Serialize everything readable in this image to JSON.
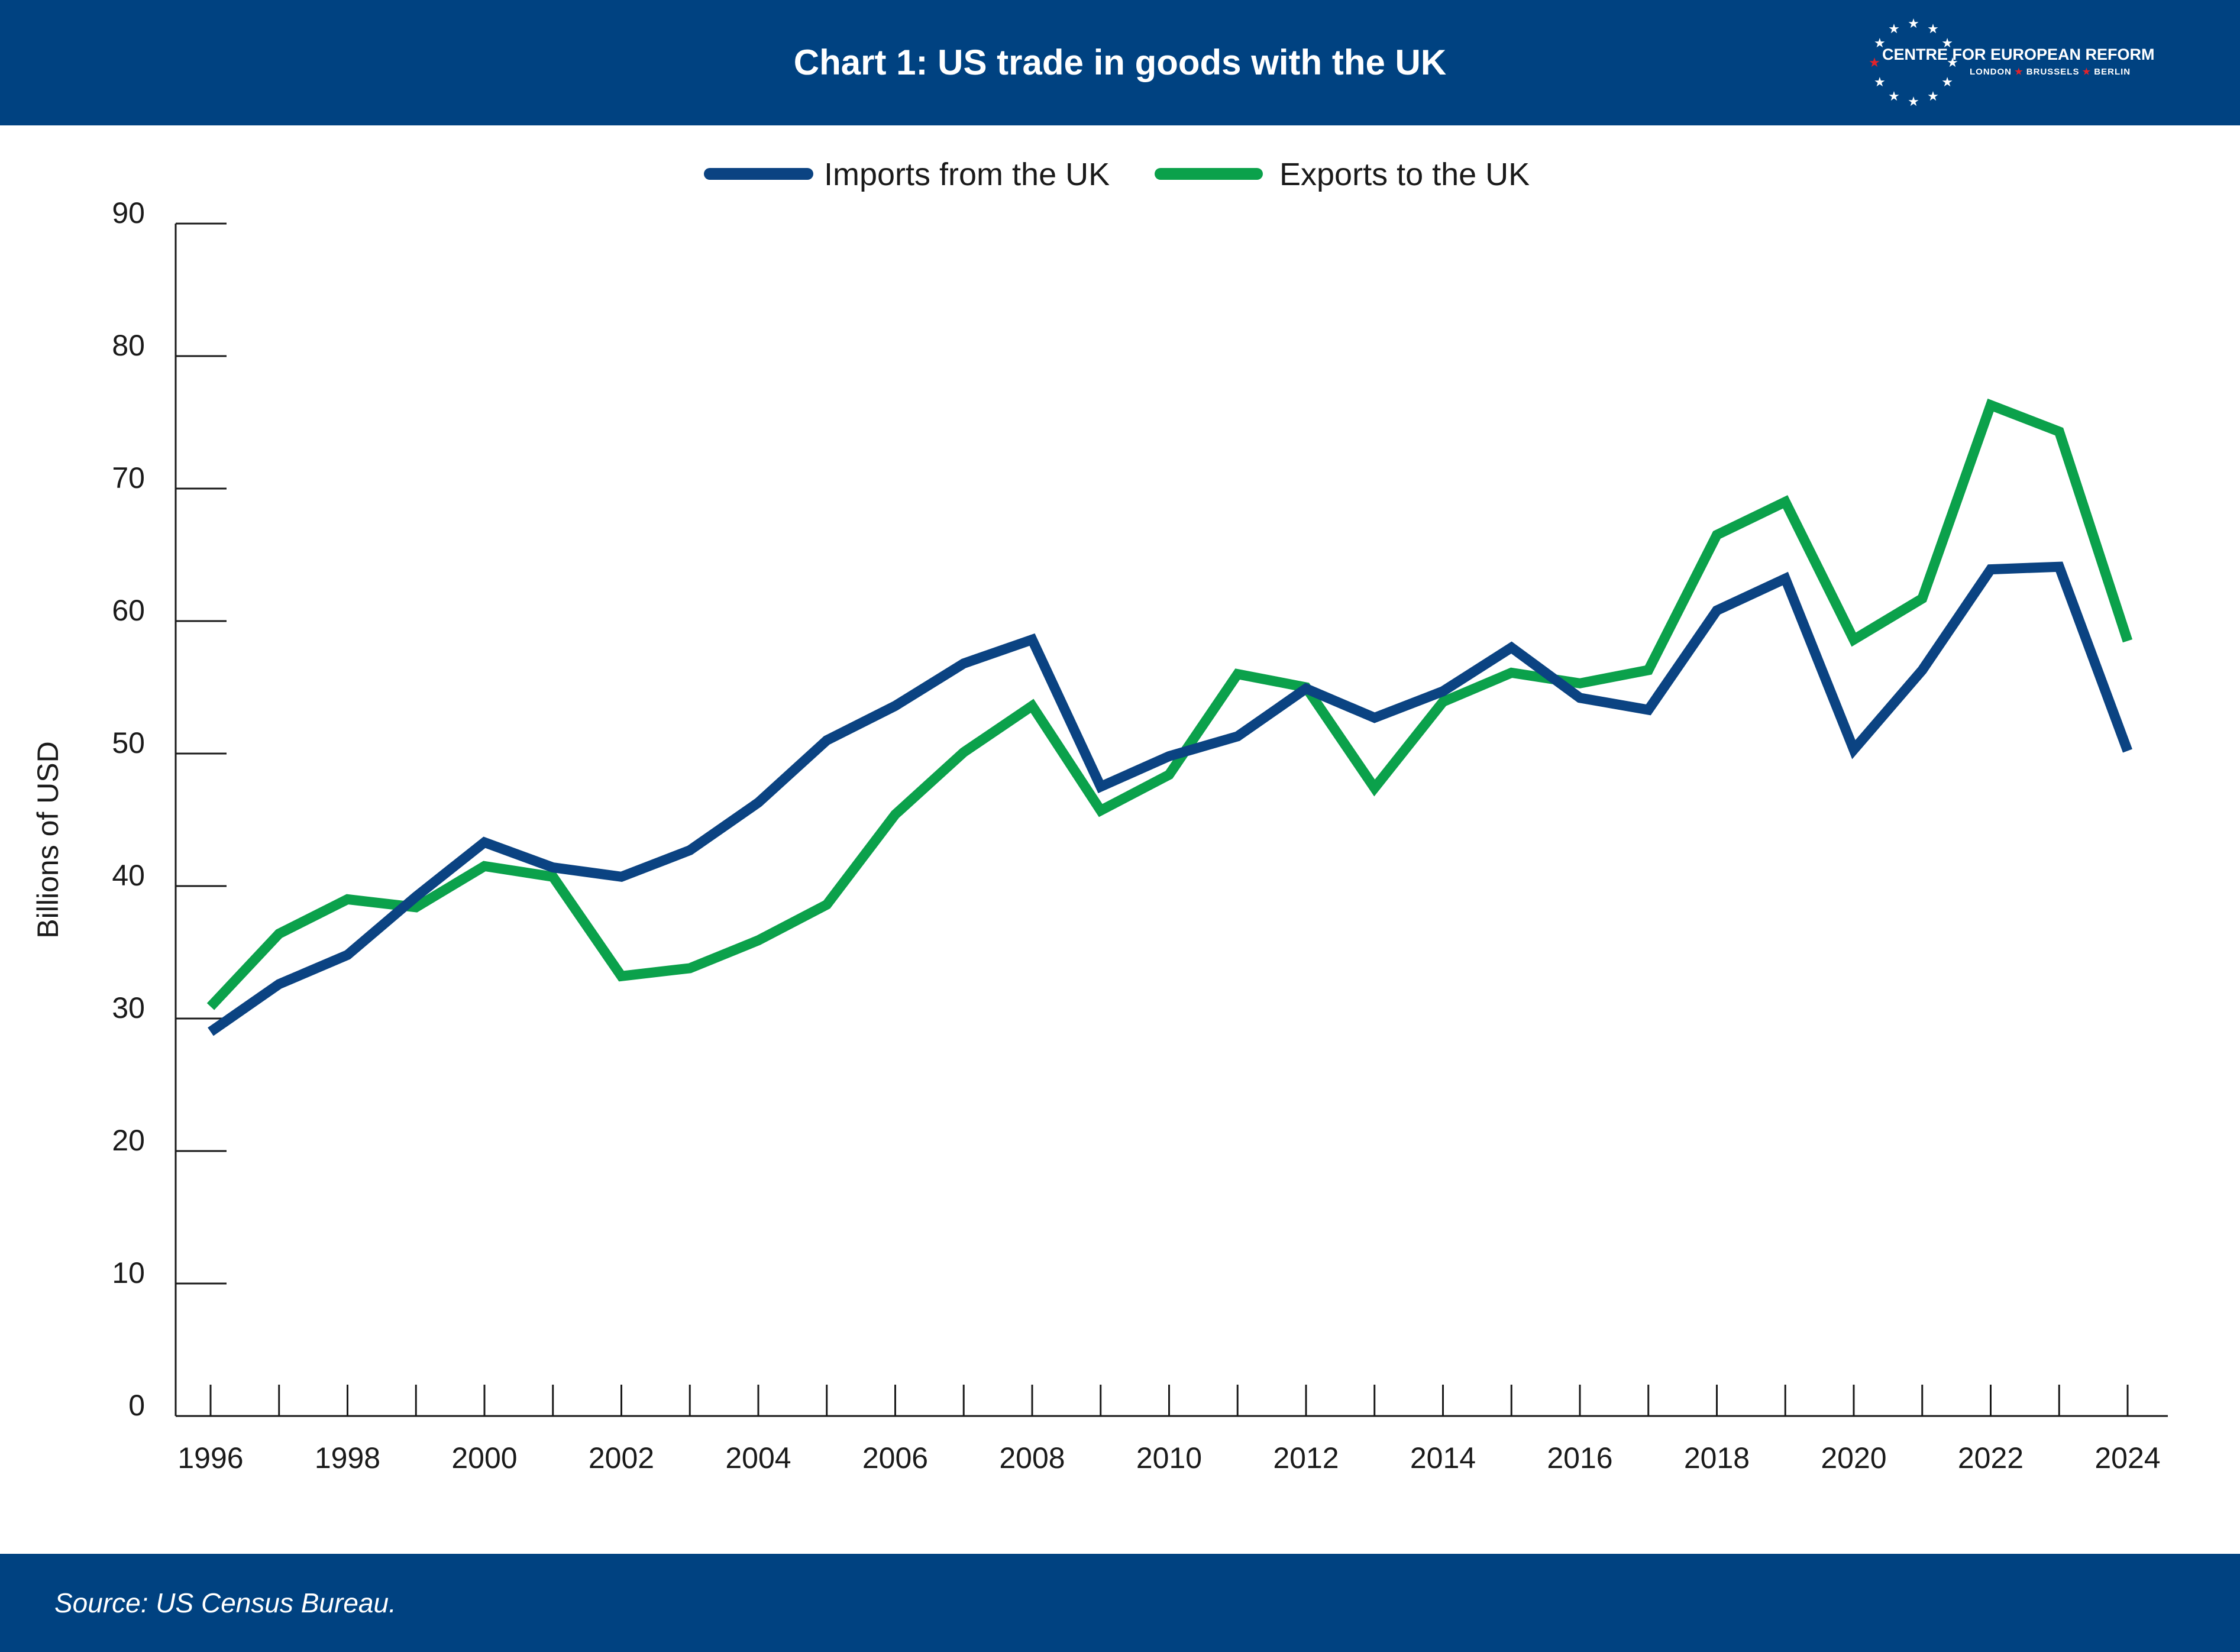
{
  "header": {
    "title": "Chart 1: US trade in goods with the UK",
    "logo_name": "CENTRE FOR EUROPEAN REFORM",
    "logo_cities": [
      "LONDON",
      "BRUSSELS",
      "BERLIN"
    ]
  },
  "footer": {
    "source": "Source: US Census Bureau."
  },
  "colors": {
    "brand_blue": "#004281",
    "imports": "#0b4382",
    "exports": "#0ba14b",
    "star_red": "#e2232a"
  },
  "chart_data": {
    "type": "line",
    "title": "Chart 1: US trade in goods with the UK",
    "xlabel": "",
    "ylabel": "Billions of USD",
    "ylim": [
      0,
      90
    ],
    "yticks": [
      0,
      10,
      20,
      30,
      40,
      50,
      60,
      70,
      80,
      90
    ],
    "x": [
      1996,
      1997,
      1998,
      1999,
      2000,
      2001,
      2002,
      2003,
      2004,
      2005,
      2006,
      2007,
      2008,
      2009,
      2010,
      2011,
      2012,
      2013,
      2014,
      2015,
      2016,
      2017,
      2018,
      2019,
      2020,
      2021,
      2022,
      2023,
      2024
    ],
    "xtick_labels": [
      "1996",
      "1998",
      "2000",
      "2002",
      "2004",
      "2006",
      "2008",
      "2010",
      "2012",
      "2014",
      "2016",
      "2018",
      "2020",
      "2022",
      "2024"
    ],
    "legend": "top-center",
    "grid": false,
    "series": [
      {
        "name": "Imports from the UK",
        "color": "#0b4382",
        "values": [
          29.0,
          32.6,
          34.8,
          39.2,
          43.3,
          41.4,
          40.7,
          42.7,
          46.3,
          51.0,
          53.6,
          56.8,
          58.6,
          47.5,
          49.8,
          51.3,
          54.9,
          52.7,
          54.7,
          58.0,
          54.2,
          53.3,
          60.8,
          63.2,
          50.3,
          56.3,
          63.9,
          64.1,
          50.2
        ]
      },
      {
        "name": "Exports to the UK",
        "color": "#0ba14b",
        "values": [
          30.9,
          36.4,
          39.0,
          38.4,
          41.5,
          40.7,
          33.2,
          33.8,
          35.9,
          38.6,
          45.4,
          50.1,
          53.6,
          45.7,
          48.4,
          56.0,
          55.0,
          47.4,
          53.9,
          56.1,
          55.3,
          56.3,
          66.5,
          69.0,
          58.6,
          61.7,
          76.3,
          74.3,
          58.5
        ]
      }
    ]
  }
}
